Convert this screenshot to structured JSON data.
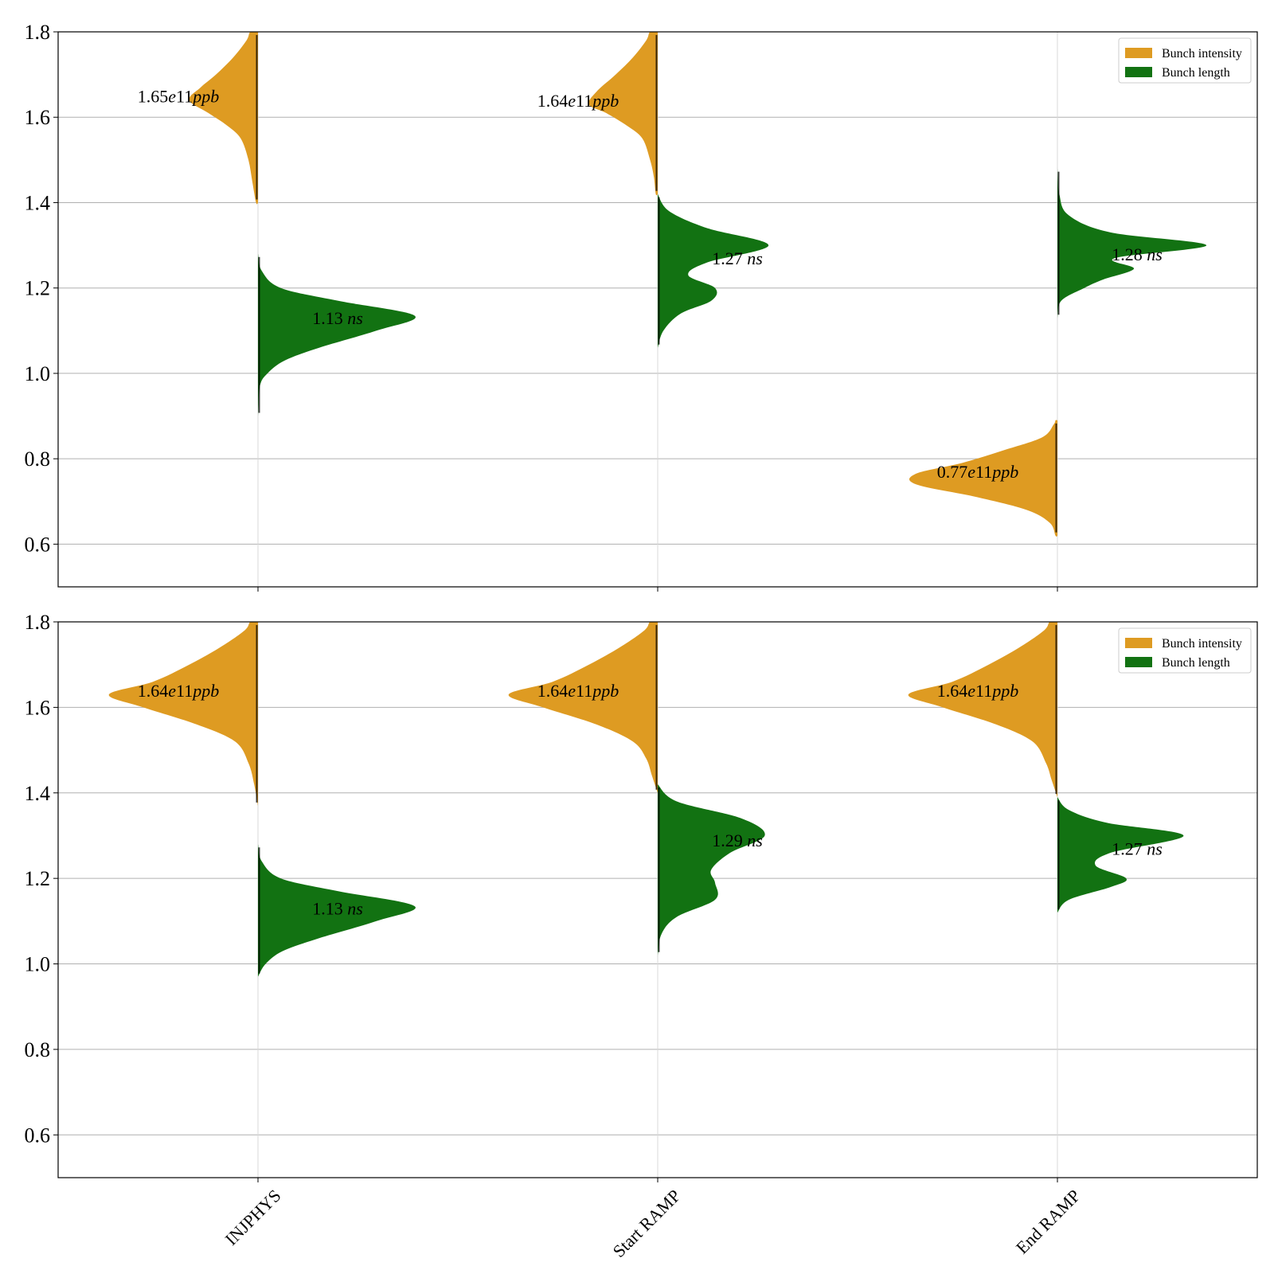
{
  "colors": {
    "intensity": "#DE9B22",
    "length": "#127212",
    "grid": "#b0b0b0",
    "axis": "#000000",
    "median_line": "#000000"
  },
  "chart_data": [
    {
      "type": "violin",
      "title": "",
      "xlabel": "",
      "ylabel": "",
      "ylim": [
        0.5,
        1.8
      ],
      "yticks": [
        "0.6",
        "0.8",
        "1.0",
        "1.2",
        "1.4",
        "1.6",
        "1.8"
      ],
      "categories": [
        "INJPHYS",
        "Start RAMP",
        "End RAMP"
      ],
      "show_tick_labels": false,
      "grid": true,
      "legend": {
        "placement": "top-right",
        "entries": [
          "Bunch intensity",
          "Bunch length"
        ]
      },
      "series": [
        {
          "name": "Bunch intensity",
          "side": "left",
          "color": "#DE9B22",
          "labels": [
            "1.65e11ppb",
            "1.64e11ppb",
            "0.77e11ppb"
          ],
          "distributions": [
            {
              "y": [
                1.4,
                1.45,
                1.5,
                1.55,
                1.58,
                1.61,
                1.64,
                1.67,
                1.7,
                1.74,
                1.78,
                1.8
              ],
              "density": [
                0.01,
                0.03,
                0.05,
                0.09,
                0.16,
                0.26,
                0.36,
                0.3,
                0.22,
                0.13,
                0.06,
                0.04
              ],
              "label_y": 1.65
            },
            {
              "y": [
                1.42,
                1.46,
                1.5,
                1.55,
                1.58,
                1.61,
                1.63,
                1.66,
                1.7,
                1.74,
                1.78,
                1.8
              ],
              "density": [
                0.01,
                0.02,
                0.04,
                0.08,
                0.16,
                0.27,
                0.36,
                0.32,
                0.22,
                0.13,
                0.06,
                0.04
              ],
              "label_y": 1.64
            },
            {
              "y": [
                0.62,
                0.65,
                0.68,
                0.71,
                0.74,
                0.765,
                0.79,
                0.82,
                0.85,
                0.88,
                0.89
              ],
              "density": [
                0.01,
                0.04,
                0.16,
                0.42,
                0.74,
                0.74,
                0.5,
                0.28,
                0.08,
                0.02,
                0.01
              ],
              "label_y": 0.77
            }
          ]
        },
        {
          "name": "Bunch length",
          "side": "right",
          "color": "#127212",
          "labels": [
            "1.13 ns",
            "1.27 ns",
            "1.28 ns"
          ],
          "distributions": [
            {
              "y": [
                0.9,
                0.97,
                1.0,
                1.03,
                1.06,
                1.1,
                1.135,
                1.17,
                1.2,
                1.24,
                1.28
              ],
              "density": [
                0.0,
                0.01,
                0.05,
                0.14,
                0.32,
                0.62,
                0.82,
                0.42,
                0.12,
                0.02,
                0.0
              ],
              "label_y": 1.13
            },
            {
              "y": [
                1.06,
                1.1,
                1.14,
                1.17,
                1.2,
                1.23,
                1.26,
                1.3,
                1.34,
                1.38,
                1.42
              ],
              "density": [
                0.0,
                0.03,
                0.12,
                0.28,
                0.3,
                0.16,
                0.26,
                0.58,
                0.26,
                0.06,
                0.0
              ],
              "label_y": 1.27
            },
            {
              "y": [
                1.13,
                1.17,
                1.2,
                1.22,
                1.245,
                1.27,
                1.3,
                1.33,
                1.37,
                1.42,
                1.48
              ],
              "density": [
                0.0,
                0.02,
                0.14,
                0.24,
                0.4,
                0.3,
                0.78,
                0.28,
                0.06,
                0.01,
                0.0
              ],
              "label_y": 1.28
            }
          ]
        }
      ]
    },
    {
      "type": "violin",
      "title": "",
      "xlabel": "",
      "ylabel": "",
      "ylim": [
        0.5,
        1.8
      ],
      "yticks": [
        "0.6",
        "0.8",
        "1.0",
        "1.2",
        "1.4",
        "1.6",
        "1.8"
      ],
      "categories": [
        "INJPHYS",
        "Start RAMP",
        "End RAMP"
      ],
      "show_tick_labels": true,
      "grid": true,
      "legend": {
        "placement": "top-right",
        "entries": [
          "Bunch intensity",
          "Bunch length"
        ]
      },
      "series": [
        {
          "name": "Bunch intensity",
          "side": "left",
          "color": "#DE9B22",
          "labels": [
            "1.64e11ppb",
            "1.64e11ppb",
            "1.64e11ppb"
          ],
          "distributions": [
            {
              "y": [
                1.37,
                1.42,
                1.47,
                1.52,
                1.56,
                1.6,
                1.63,
                1.66,
                1.7,
                1.74,
                1.78,
                1.8
              ],
              "density": [
                0.0,
                0.02,
                0.05,
                0.12,
                0.32,
                0.6,
                0.78,
                0.55,
                0.36,
                0.2,
                0.07,
                0.04
              ],
              "label_y": 1.64
            },
            {
              "y": [
                1.4,
                1.44,
                1.48,
                1.52,
                1.56,
                1.6,
                1.63,
                1.66,
                1.7,
                1.74,
                1.78,
                1.8
              ],
              "density": [
                0.0,
                0.03,
                0.06,
                0.13,
                0.32,
                0.6,
                0.78,
                0.55,
                0.36,
                0.2,
                0.07,
                0.04
              ],
              "label_y": 1.64
            },
            {
              "y": [
                1.39,
                1.43,
                1.47,
                1.52,
                1.56,
                1.6,
                1.63,
                1.66,
                1.7,
                1.74,
                1.78,
                1.8
              ],
              "density": [
                0.0,
                0.03,
                0.06,
                0.13,
                0.32,
                0.6,
                0.78,
                0.55,
                0.36,
                0.2,
                0.07,
                0.04
              ],
              "label_y": 1.64
            }
          ]
        },
        {
          "name": "Bunch length",
          "side": "right",
          "color": "#127212",
          "labels": [
            "1.13 ns",
            "1.29 ns",
            "1.27 ns"
          ],
          "distributions": [
            {
              "y": [
                0.97,
                1.0,
                1.03,
                1.06,
                1.1,
                1.135,
                1.17,
                1.2,
                1.24,
                1.28
              ],
              "density": [
                0.0,
                0.04,
                0.13,
                0.32,
                0.62,
                0.82,
                0.42,
                0.12,
                0.02,
                0.0
              ],
              "label_y": 1.13
            },
            {
              "y": [
                1.02,
                1.07,
                1.11,
                1.15,
                1.19,
                1.22,
                1.26,
                1.3,
                1.34,
                1.38,
                1.42
              ],
              "density": [
                0.0,
                0.02,
                0.1,
                0.3,
                0.3,
                0.28,
                0.38,
                0.56,
                0.44,
                0.1,
                0.0
              ],
              "label_y": 1.29
            },
            {
              "y": [
                1.12,
                1.15,
                1.18,
                1.2,
                1.23,
                1.26,
                1.3,
                1.33,
                1.36,
                1.39
              ],
              "density": [
                0.0,
                0.06,
                0.28,
                0.36,
                0.2,
                0.28,
                0.66,
                0.26,
                0.06,
                0.0
              ],
              "label_y": 1.27
            }
          ]
        }
      ]
    }
  ]
}
